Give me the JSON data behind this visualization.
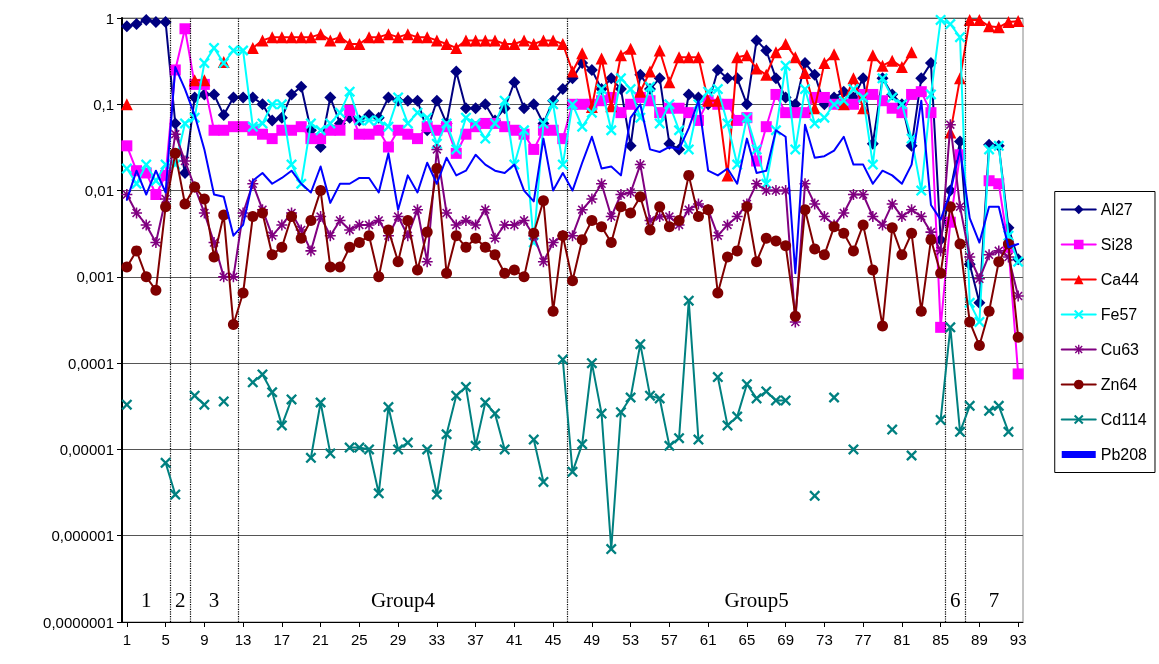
{
  "chart_data": {
    "type": "line",
    "x": [
      1,
      2,
      3,
      4,
      5,
      6,
      7,
      8,
      9,
      10,
      11,
      12,
      13,
      14,
      15,
      16,
      17,
      18,
      19,
      20,
      21,
      22,
      23,
      24,
      25,
      26,
      27,
      28,
      29,
      30,
      31,
      32,
      33,
      34,
      35,
      36,
      37,
      38,
      39,
      40,
      41,
      42,
      43,
      44,
      45,
      46,
      47,
      48,
      49,
      50,
      51,
      52,
      53,
      54,
      55,
      56,
      57,
      58,
      59,
      60,
      61,
      62,
      63,
      64,
      65,
      66,
      67,
      68,
      69,
      70,
      71,
      72,
      73,
      74,
      75,
      76,
      77,
      78,
      79,
      80,
      81,
      82,
      83,
      84,
      85,
      86,
      87,
      88,
      89,
      90,
      91,
      92,
      93
    ],
    "xlim": [
      0.5,
      93.5
    ],
    "xticks": [
      1,
      5,
      9,
      13,
      17,
      21,
      25,
      29,
      33,
      37,
      41,
      45,
      49,
      53,
      57,
      61,
      65,
      69,
      73,
      77,
      81,
      85,
      89,
      93
    ],
    "log": "y",
    "ylim": [
      1e-07,
      1
    ],
    "yticks": [
      {
        "value": 1e-07,
        "label": "0,0000001"
      },
      {
        "value": 1e-06,
        "label": "0,000001"
      },
      {
        "value": 1e-05,
        "label": "0,00001"
      },
      {
        "value": 0.0001,
        "label": "0,0001"
      },
      {
        "value": 0.001,
        "label": "0,001"
      },
      {
        "value": 0.01,
        "label": "0,01"
      },
      {
        "value": 0.1,
        "label": "0,1"
      },
      1
    ],
    "grid": "y",
    "legend": "right",
    "series": [
      {
        "name": "Al27",
        "color": "#000080",
        "marker": "diamond",
        "values": [
          0.8,
          0.85,
          0.95,
          0.9,
          0.9,
          0.06,
          0.016,
          0.12,
          0.13,
          0.13,
          0.075,
          0.12,
          0.12,
          0.12,
          0.1,
          0.065,
          0.07,
          0.13,
          0.16,
          0.05,
          0.032,
          0.12,
          0.06,
          0.07,
          0.065,
          0.075,
          0.07,
          0.12,
          0.11,
          0.11,
          0.11,
          0.05,
          0.11,
          0.06,
          0.24,
          0.09,
          0.09,
          0.1,
          0.065,
          0.09,
          0.18,
          0.09,
          0.1,
          0.06,
          0.11,
          0.15,
          0.2,
          0.3,
          0.25,
          0.15,
          0.2,
          0.15,
          0.033,
          0.22,
          0.15,
          0.2,
          0.035,
          0.03,
          0.13,
          0.12,
          0.1,
          0.25,
          0.2,
          0.2,
          0.1,
          0.55,
          0.42,
          0.2,
          0.12,
          0.1,
          0.3,
          0.22,
          0.1,
          0.12,
          0.14,
          0.12,
          0.2,
          0.035,
          0.2,
          0.13,
          0.1,
          0.033,
          0.2,
          0.3,
          0.0027,
          0.01,
          0.037,
          0.0014,
          0.0005,
          0.034,
          0.033,
          0.0037,
          0.0016
        ]
      },
      {
        "name": "Si28",
        "color": "#ff00ff",
        "marker": "square",
        "values": [
          0.033,
          0.017,
          0.016,
          0.009,
          0.015,
          0.25,
          0.75,
          0.17,
          0.17,
          0.05,
          0.05,
          0.055,
          0.055,
          0.05,
          0.045,
          0.04,
          0.05,
          0.05,
          0.055,
          0.04,
          0.04,
          0.05,
          0.05,
          0.085,
          0.045,
          0.045,
          0.05,
          0.032,
          0.05,
          0.045,
          0.04,
          0.055,
          0.05,
          0.055,
          0.027,
          0.045,
          0.055,
          0.06,
          0.06,
          0.055,
          0.05,
          0.045,
          0.03,
          0.05,
          0.05,
          0.04,
          0.1,
          0.1,
          0.1,
          0.11,
          0.12,
          0.08,
          0.1,
          0.12,
          0.11,
          0.08,
          0.09,
          0.09,
          0.08,
          0.065,
          0.11,
          0.1,
          0.1,
          0.065,
          0.07,
          0.022,
          0.055,
          0.13,
          0.08,
          0.08,
          0.08,
          0.12,
          0.12,
          0.1,
          0.1,
          0.1,
          0.13,
          0.13,
          0.11,
          0.09,
          0.08,
          0.13,
          0.14,
          0.08,
          0.00026,
          0.0043,
          0.026,
          null,
          null,
          0.013,
          0.012,
          0.0022,
          7.5e-05
        ]
      },
      {
        "name": "Ca44",
        "color": "#ff0000",
        "marker": "triangle",
        "values": [
          0.1,
          null,
          null,
          null,
          null,
          null,
          null,
          0.19,
          0.19,
          null,
          0.31,
          null,
          null,
          0.45,
          0.55,
          0.6,
          0.6,
          0.6,
          0.6,
          0.6,
          0.65,
          0.55,
          0.6,
          0.5,
          0.5,
          0.6,
          0.6,
          0.65,
          0.6,
          0.65,
          0.6,
          0.6,
          0.55,
          0.5,
          0.45,
          0.55,
          0.55,
          0.55,
          0.55,
          0.5,
          0.5,
          0.55,
          0.5,
          0.55,
          0.55,
          0.5,
          0.24,
          0.39,
          0.093,
          0.34,
          0.095,
          0.37,
          0.44,
          0.14,
          0.24,
          0.42,
          0.18,
          0.35,
          0.35,
          0.35,
          0.11,
          0.11,
          0.015,
          0.35,
          0.37,
          0.26,
          0.22,
          0.4,
          0.5,
          0.35,
          0.23,
          0.09,
          0.3,
          0.38,
          0.1,
          0.2,
          0.09,
          0.37,
          0.28,
          0.32,
          0.27,
          0.4,
          null,
          null,
          null,
          0.047,
          0.2,
          0.95,
          0.95,
          0.8,
          0.78,
          0.9,
          0.92
        ]
      },
      {
        "name": "Fe57",
        "color": "#00ffff",
        "marker": "cross",
        "values": [
          0.018,
          0.012,
          0.02,
          0.013,
          0.02,
          0.02,
          0.06,
          0.07,
          0.3,
          0.45,
          0.3,
          0.42,
          0.42,
          0.055,
          0.06,
          0.1,
          0.1,
          0.02,
          0.012,
          0.06,
          0.05,
          0.06,
          0.08,
          0.14,
          0.065,
          0.065,
          0.065,
          0.055,
          0.12,
          0.06,
          0.08,
          0.07,
          0.035,
          0.06,
          0.03,
          0.07,
          0.06,
          0.04,
          0.06,
          0.11,
          0.02,
          0.05,
          0.0025,
          0.06,
          0.1,
          0.02,
          0.1,
          0.055,
          0.08,
          0.15,
          0.05,
          0.2,
          0.15,
          0.07,
          0.16,
          0.06,
          0.1,
          0.05,
          0.03,
          0.1,
          0.14,
          0.15,
          0.06,
          0.02,
          0.07,
          0.03,
          0.012,
          0.05,
          0.28,
          0.03,
          0.15,
          0.06,
          0.07,
          0.1,
          0.11,
          0.15,
          0.12,
          0.02,
          0.2,
          0.12,
          0.1,
          0.04,
          0.01,
          0.13,
          0.95,
          0.85,
          0.6,
          0.0005,
          0.0003,
          0.03,
          0.033,
          0.003,
          0.0015
        ]
      },
      {
        "name": "Cu63",
        "color": "#800080",
        "marker": "star",
        "values": [
          0.009,
          0.0055,
          0.004,
          0.0025,
          0.008,
          0.045,
          0.022,
          0.011,
          0.0055,
          0.0025,
          0.001,
          0.001,
          0.0055,
          0.012,
          0.006,
          0.003,
          0.004,
          0.0055,
          0.0035,
          0.002,
          0.005,
          0.003,
          0.0045,
          0.0035,
          0.004,
          0.004,
          0.0045,
          0.003,
          0.005,
          0.003,
          0.006,
          0.0015,
          0.03,
          0.0055,
          0.004,
          0.0045,
          0.004,
          0.006,
          0.0028,
          0.004,
          0.004,
          0.0045,
          0.003,
          0.0015,
          0.0025,
          0.003,
          0.003,
          0.006,
          0.008,
          0.012,
          0.005,
          0.009,
          0.0095,
          0.02,
          0.0045,
          0.005,
          0.005,
          0.004,
          0.006,
          0.007,
          0.006,
          0.003,
          0.004,
          0.005,
          0.007,
          0.012,
          0.01,
          0.01,
          0.01,
          0.0003,
          0.012,
          0.007,
          0.005,
          0.004,
          0.0055,
          0.009,
          0.009,
          0.005,
          0.004,
          0.007,
          0.005,
          0.006,
          0.005,
          0.0033,
          0.002,
          0.058,
          0.0065,
          0.0017,
          0.00095,
          0.0018,
          0.002,
          0.0017,
          0.0006
        ]
      },
      {
        "name": "Zn64",
        "color": "#800000",
        "marker": "circle",
        "values": [
          0.0013,
          0.002,
          0.001,
          0.0007,
          0.0065,
          0.027,
          0.007,
          0.011,
          0.008,
          0.0017,
          0.0052,
          0.00028,
          0.00065,
          0.005,
          0.0055,
          0.0018,
          0.0022,
          0.005,
          0.0028,
          0.0045,
          0.01,
          0.0013,
          0.0013,
          0.0022,
          0.0025,
          0.003,
          0.001,
          0.0035,
          0.0015,
          0.0045,
          0.0012,
          0.0033,
          0.018,
          0.0011,
          0.003,
          0.0022,
          0.0028,
          0.0022,
          0.0018,
          0.0011,
          0.0012,
          0.001,
          0.0032,
          0.0076,
          0.0004,
          0.003,
          0.0009,
          0.0027,
          0.0045,
          0.0038,
          0.0025,
          0.0065,
          0.0055,
          0.0085,
          0.0035,
          0.0065,
          0.0038,
          0.0045,
          0.015,
          0.005,
          0.006,
          0.00065,
          0.0017,
          0.002,
          0.0065,
          0.0015,
          0.0028,
          0.0026,
          0.0023,
          0.00035,
          0.006,
          0.0021,
          0.0018,
          0.0038,
          0.0032,
          0.002,
          0.004,
          0.0012,
          0.00027,
          0.0037,
          0.0018,
          0.0032,
          0.0004,
          0.0027,
          0.0011,
          0.0065,
          0.0024,
          0.0003,
          0.00016,
          0.0004,
          0.0015,
          0.0024,
          0.0002
        ]
      },
      {
        "name": "Cd114",
        "color": "#008080",
        "marker": "cross",
        "values": [
          3.3e-05,
          null,
          null,
          null,
          7e-06,
          3e-06,
          null,
          4.2e-05,
          3.3e-05,
          null,
          3.6e-05,
          null,
          null,
          6e-05,
          7.4e-05,
          4.6e-05,
          1.9e-05,
          3.8e-05,
          null,
          8e-06,
          3.5e-05,
          9e-06,
          null,
          1.05e-05,
          1.05e-05,
          1e-05,
          3.1e-06,
          3.1e-05,
          1e-05,
          1.2e-05,
          null,
          1e-05,
          3e-06,
          1.5e-05,
          4.2e-05,
          5.3e-05,
          1.1e-05,
          3.5e-05,
          2.6e-05,
          1e-05,
          null,
          null,
          1.3e-05,
          4.2e-06,
          null,
          0.00011,
          5.5e-06,
          1.15e-05,
          0.0001,
          2.6e-05,
          7e-07,
          2.7e-05,
          4e-05,
          0.000166,
          4.2e-05,
          3.9e-05,
          1.1e-05,
          1.35e-05,
          0.00053,
          1.3e-05,
          null,
          6.9e-05,
          1.9e-05,
          2.4e-05,
          5.7e-05,
          3.9e-05,
          4.7e-05,
          3.7e-05,
          3.7e-05,
          null,
          null,
          2.9e-06,
          null,
          4e-05,
          null,
          1e-05,
          null,
          null,
          null,
          1.7e-05,
          null,
          8.5e-06,
          null,
          null,
          2.2e-05,
          0.00026,
          1.6e-05,
          3.2e-05,
          null,
          2.8e-05,
          3.2e-05,
          1.6e-05,
          null
        ]
      },
      {
        "name": "Pb208",
        "color": "#0000ff",
        "marker": "none",
        "values": [
          0.0078,
          0.017,
          0.009,
          0.017,
          0.0095,
          0.27,
          0.15,
          0.075,
          0.03,
          0.009,
          0.0085,
          0.003,
          0.004,
          0.013,
          0.016,
          0.012,
          0.014,
          0.017,
          0.012,
          0.0095,
          0.019,
          0.0072,
          0.012,
          0.012,
          0.014,
          0.014,
          0.0095,
          0.027,
          0.006,
          0.015,
          0.0095,
          0.021,
          0.012,
          0.024,
          0.015,
          0.017,
          0.026,
          0.02,
          0.017,
          0.016,
          0.02,
          0.01,
          0.0075,
          0.04,
          0.01,
          0.016,
          0.01,
          0.021,
          0.042,
          0.018,
          0.019,
          0.015,
          0.07,
          0.1,
          0.03,
          0.028,
          0.032,
          0.03,
          0.053,
          0.11,
          0.017,
          0.015,
          0.018,
          0.012,
          0.04,
          0.016,
          0.017,
          0.05,
          0.042,
          0.0011,
          0.058,
          0.024,
          0.025,
          0.029,
          0.042,
          0.02,
          0.02,
          0.012,
          0.017,
          0.015,
          0.012,
          0.02,
          0.11,
          0.0068,
          0.0046,
          0.0096,
          0.03,
          0.0048,
          0.0025,
          0.0065,
          0.0065,
          0.0022,
          0.0024
        ]
      }
    ],
    "ref_lines": [
      {
        "axis": "x",
        "value": 5.5,
        "color": "#000000",
        "line_style": "dotted"
      },
      {
        "axis": "x",
        "value": 7.5,
        "color": "#000000",
        "line_style": "dotted"
      },
      {
        "axis": "x",
        "value": 12.5,
        "color": "#000000",
        "line_style": "dotted"
      },
      {
        "axis": "x",
        "value": 46.5,
        "color": "#000000",
        "line_style": "dotted"
      },
      {
        "axis": "x",
        "value": 85.5,
        "color": "#000000",
        "line_style": "dotted"
      },
      {
        "axis": "x",
        "value": 87.5,
        "color": "#000000",
        "line_style": "dotted"
      }
    ],
    "annotations": [
      "1",
      "2",
      "3",
      "Group4",
      "Group5",
      "6",
      "7"
    ]
  }
}
